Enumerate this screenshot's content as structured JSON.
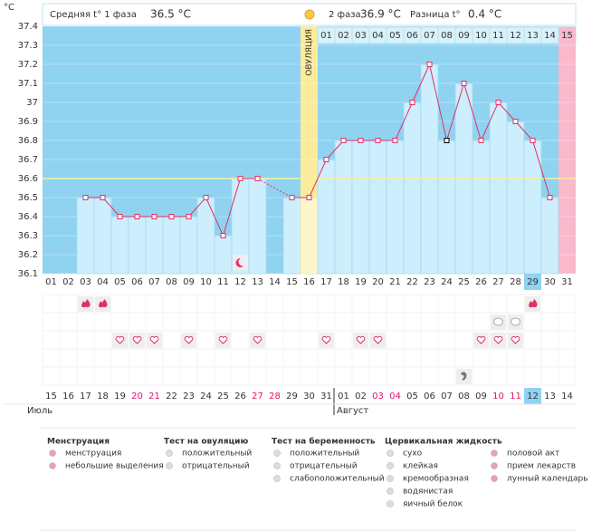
{
  "header": {
    "unit": "°C",
    "phase1_label": "Средняя t° 1 фаза",
    "phase1_value": "36.5 °C",
    "phase2_label": "2 фаза",
    "phase2_value": "36.9 °C",
    "diff_label": "Разница t°",
    "diff_value": "0.4 °C"
  },
  "chart_data": {
    "type": "line",
    "categories": [
      "01",
      "02",
      "03",
      "04",
      "05",
      "06",
      "07",
      "08",
      "09",
      "10",
      "11",
      "12",
      "13",
      "14",
      "15",
      "16",
      "17",
      "18",
      "19",
      "20",
      "21",
      "22",
      "23",
      "24",
      "25",
      "26",
      "27",
      "28",
      "29",
      "30",
      "31"
    ],
    "values": [
      null,
      null,
      36.5,
      36.5,
      36.4,
      36.4,
      36.4,
      36.4,
      36.4,
      36.5,
      36.3,
      36.6,
      36.6,
      null,
      36.5,
      36.5,
      36.7,
      36.8,
      36.8,
      36.8,
      36.8,
      37,
      37.2,
      36.8,
      37.1,
      36.8,
      37,
      36.9,
      36.8,
      36.5,
      null
    ],
    "color": "#e0306a",
    "ylim": [
      36.1,
      37.4
    ],
    "yticks": [
      36.1,
      36.2,
      36.3,
      36.4,
      36.5,
      36.6,
      36.7,
      36.8,
      36.9,
      37,
      37.1,
      37.2,
      37.3,
      37.4
    ],
    "grid": true,
    "coverline": 36.6,
    "ovulation_label": "ОВУЛЯЦИЯ",
    "phase2_days": [
      "01",
      "02",
      "03",
      "04",
      "05",
      "06",
      "07",
      "08",
      "09",
      "10",
      "11",
      "12",
      "13",
      "14",
      "15"
    ],
    "calendar_dates": [
      "15",
      "16",
      "17",
      "18",
      "19",
      "20",
      "21",
      "22",
      "23",
      "24",
      "25",
      "26",
      "27",
      "28",
      "29",
      "30",
      "31",
      "01",
      "02",
      "03",
      "04",
      "05",
      "06",
      "07",
      "08",
      "09",
      "10",
      "11",
      "12",
      "13",
      "14"
    ],
    "months": [
      "Июль",
      "Август"
    ],
    "weekend_color": "#e2136d"
  },
  "legend": {
    "menstruation": {
      "title": "Менструация",
      "items": [
        "менструация",
        "небольшие выделения"
      ]
    },
    "ovulation_test": {
      "title": "Тест на овуляцию",
      "items": [
        "положительный",
        "отрицательный"
      ]
    },
    "pregnancy_test": {
      "title": "Тест на беременность",
      "items": [
        "положительный",
        "отрицательный",
        "слабоположительный"
      ]
    },
    "cervical_fluid": {
      "title": "Цервикальная жидкость",
      "items": [
        "сухо",
        "клейкая",
        "кремообразная",
        "водянистая",
        "яичный белок"
      ]
    },
    "other": {
      "items": [
        "половой акт",
        "прием лекарств",
        "лунный календарь"
      ]
    }
  }
}
